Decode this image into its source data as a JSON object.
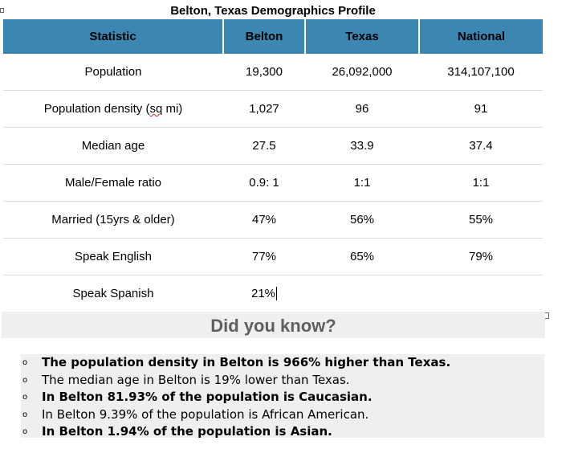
{
  "title": "Belton, Texas Demographics Profile",
  "table": {
    "headers": [
      "Statistic",
      "Belton",
      "Texas",
      "National"
    ],
    "rows": [
      [
        "Population",
        "19,300",
        "26,092,000",
        "314,107,100"
      ],
      [
        "Population density (sq mi)",
        "1,027",
        "96",
        "91"
      ],
      [
        "Median age",
        "27.5",
        "33.9",
        "37.4"
      ],
      [
        "Male/Female ratio",
        "0.9: 1",
        "1:1",
        "1:1"
      ],
      [
        "Married (15yrs & older)",
        "47%",
        "56%",
        "55%"
      ],
      [
        "Speak English",
        "77%",
        "65%",
        "79%"
      ],
      [
        "Speak Spanish",
        "21%",
        "",
        ""
      ]
    ]
  },
  "did_you_know": {
    "heading": "Did you know?",
    "bullet_glyph": "o",
    "facts": [
      "The population density in Belton is 966% higher than Texas.",
      "The median age in Belton is 19% lower than Texas.",
      "In Belton 81.93% of the population is Caucasian.",
      "In Belton 9.39% of the population is African American.",
      "In Belton 1.94% of the population is Asian."
    ]
  },
  "colors": {
    "header_bg": "#3c86b2",
    "panel_bg": "#efefef",
    "heading_text": "#5f5f5f"
  }
}
